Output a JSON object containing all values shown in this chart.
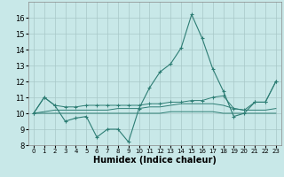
{
  "xlabel": "Humidex (Indice chaleur)",
  "x": [
    0,
    1,
    2,
    3,
    4,
    5,
    6,
    7,
    8,
    9,
    10,
    11,
    12,
    13,
    14,
    15,
    16,
    17,
    18,
    19,
    20,
    21,
    22,
    23
  ],
  "line1": [
    10.0,
    11.0,
    10.5,
    9.5,
    9.7,
    9.8,
    8.5,
    9.0,
    9.0,
    8.2,
    10.3,
    11.6,
    12.6,
    13.1,
    14.1,
    16.2,
    14.7,
    12.8,
    11.4,
    9.8,
    10.0,
    10.7,
    10.7,
    12.0
  ],
  "line2": [
    10.0,
    11.0,
    10.5,
    10.4,
    10.4,
    10.5,
    10.5,
    10.5,
    10.5,
    10.5,
    10.5,
    10.6,
    10.6,
    10.7,
    10.7,
    10.8,
    10.8,
    11.0,
    11.1,
    10.3,
    10.2,
    10.7,
    10.7,
    12.0
  ],
  "line3": [
    10.0,
    10.1,
    10.2,
    10.2,
    10.2,
    10.2,
    10.2,
    10.2,
    10.3,
    10.3,
    10.3,
    10.4,
    10.4,
    10.5,
    10.6,
    10.6,
    10.6,
    10.6,
    10.5,
    10.3,
    10.2,
    10.2,
    10.2,
    10.3
  ],
  "line4": [
    10.0,
    10.0,
    10.0,
    10.0,
    10.0,
    10.0,
    10.0,
    10.0,
    10.0,
    10.0,
    10.0,
    10.0,
    10.0,
    10.1,
    10.1,
    10.1,
    10.1,
    10.1,
    10.0,
    10.0,
    10.0,
    10.0,
    10.0,
    10.0
  ],
  "line_color": "#2d7d74",
  "bg_color": "#c8e8e8",
  "grid_color": "#a8c8c8",
  "ylim": [
    8,
    17
  ],
  "yticks": [
    8,
    9,
    10,
    11,
    12,
    13,
    14,
    15,
    16
  ],
  "xticks": [
    0,
    1,
    2,
    3,
    4,
    5,
    6,
    7,
    8,
    9,
    10,
    11,
    12,
    13,
    14,
    15,
    16,
    17,
    18,
    19,
    20,
    21,
    22,
    23
  ]
}
